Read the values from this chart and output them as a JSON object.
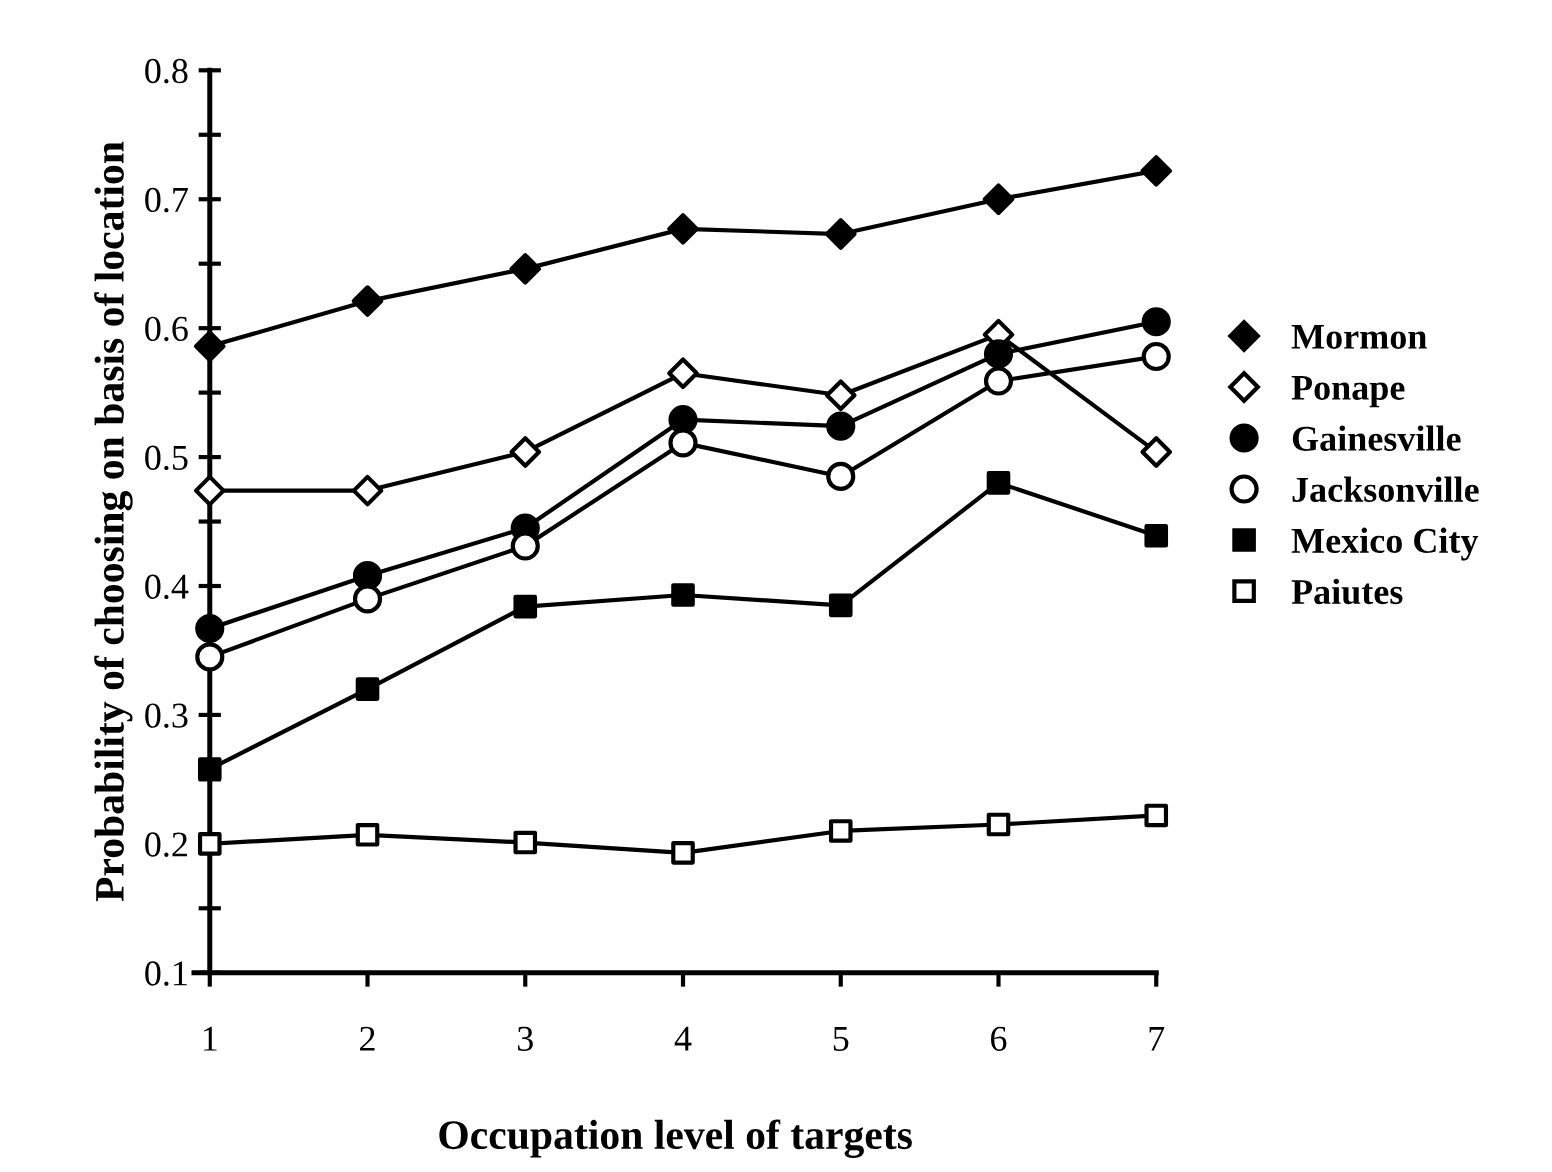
{
  "chart_data": {
    "type": "line",
    "xlabel": "Occupation level of targets",
    "ylabel": "Probability of choosing on basis of location",
    "x": [
      1,
      2,
      3,
      4,
      5,
      6,
      7
    ],
    "xlim": [
      0.9,
      7
    ],
    "xticks": [
      1,
      2,
      3,
      4,
      5,
      6,
      7
    ],
    "ylim": [
      0.1,
      0.8
    ],
    "yticks": [
      0.1,
      {
        "value": 0.15,
        "label": null
      },
      0.2,
      {
        "value": 0.25,
        "label": null
      },
      0.3,
      {
        "value": 0.35,
        "label": null
      },
      0.4,
      {
        "value": 0.45,
        "label": null
      },
      0.5,
      {
        "value": 0.55,
        "label": null
      },
      0.6,
      {
        "value": 0.65,
        "label": null
      },
      0.7,
      {
        "value": 0.75,
        "label": null
      },
      0.8
    ],
    "grid": false,
    "legend": "right",
    "line_style": "solid",
    "series": [
      {
        "name": "Mormon",
        "color": "#000000",
        "marker": "diamond",
        "values": [
          0.586,
          0.621,
          0.646,
          0.677,
          0.673,
          0.7,
          0.722
        ]
      },
      {
        "name": "Ponape",
        "color": "#000000",
        "marker": "diamond",
        "colors": [
          "#ffffff",
          "#ffffff",
          "#ffffff",
          "#ffffff",
          "#ffffff",
          "#ffffff",
          "#ffffff"
        ],
        "values": [
          0.474,
          0.474,
          0.504,
          0.565,
          0.548,
          0.595,
          0.504
        ]
      },
      {
        "name": "Gainesville",
        "color": "#000000",
        "marker": "circle",
        "values": [
          0.367,
          0.408,
          0.445,
          0.529,
          0.524,
          0.58,
          0.605
        ]
      },
      {
        "name": "Jacksonville",
        "color": "#000000",
        "marker": "circle",
        "colors": [
          "#ffffff",
          "#ffffff",
          "#ffffff",
          "#ffffff",
          "#ffffff",
          "#ffffff",
          "#ffffff"
        ],
        "values": [
          0.345,
          0.39,
          0.431,
          0.511,
          0.485,
          0.559,
          0.578
        ]
      },
      {
        "name": "Mexico City",
        "color": "#000000",
        "marker": "square",
        "values": [
          0.258,
          0.32,
          0.384,
          0.393,
          0.385,
          0.48,
          0.439
        ]
      },
      {
        "name": "Paiutes",
        "color": "#000000",
        "marker": "square",
        "colors": [
          "#ffffff",
          "#ffffff",
          "#ffffff",
          "#ffffff",
          "#ffffff",
          "#ffffff",
          "#ffffff"
        ],
        "values": [
          0.2,
          0.207,
          0.201,
          0.193,
          0.21,
          0.215,
          0.222
        ]
      }
    ]
  }
}
